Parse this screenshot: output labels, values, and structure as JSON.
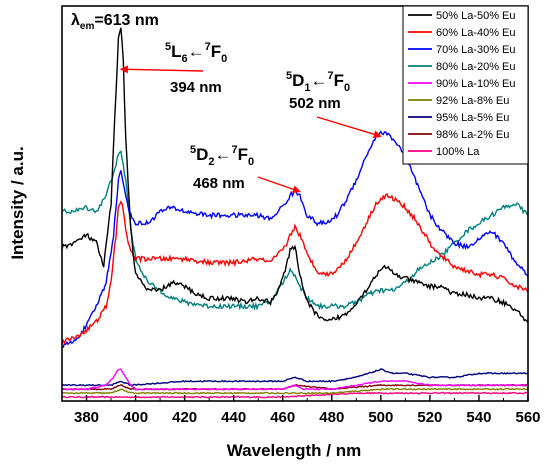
{
  "chart_data": {
    "type": "line",
    "title": "",
    "xlabel": "Wavelength / nm",
    "ylabel": "Intensity / a.u.",
    "xlim": [
      370,
      560
    ],
    "ylim": [
      0,
      1
    ],
    "x_ticks": [
      380,
      400,
      420,
      440,
      460,
      480,
      500,
      520,
      540,
      560
    ],
    "legend_position": "top-right",
    "grid": false,
    "series": [
      {
        "name": "50% La-50% Eu",
        "color": "#000000",
        "points": [
          [
            370,
            0.39
          ],
          [
            375,
            0.4
          ],
          [
            380,
            0.42
          ],
          [
            384,
            0.4
          ],
          [
            387,
            0.34
          ],
          [
            390,
            0.5
          ],
          [
            392,
            0.78
          ],
          [
            393,
            0.92
          ],
          [
            394,
            0.95
          ],
          [
            395,
            0.86
          ],
          [
            396,
            0.66
          ],
          [
            398,
            0.44
          ],
          [
            400,
            0.32
          ],
          [
            405,
            0.28
          ],
          [
            410,
            0.28
          ],
          [
            415,
            0.3
          ],
          [
            420,
            0.29
          ],
          [
            425,
            0.27
          ],
          [
            430,
            0.26
          ],
          [
            440,
            0.26
          ],
          [
            445,
            0.25
          ],
          [
            450,
            0.26
          ],
          [
            455,
            0.25
          ],
          [
            458,
            0.28
          ],
          [
            461,
            0.33
          ],
          [
            463,
            0.38
          ],
          [
            465,
            0.39
          ],
          [
            467,
            0.32
          ],
          [
            470,
            0.25
          ],
          [
            475,
            0.21
          ],
          [
            478,
            0.2
          ],
          [
            482,
            0.21
          ],
          [
            486,
            0.22
          ],
          [
            490,
            0.25
          ],
          [
            494,
            0.28
          ],
          [
            498,
            0.32
          ],
          [
            502,
            0.34
          ],
          [
            506,
            0.32
          ],
          [
            510,
            0.31
          ],
          [
            515,
            0.3
          ],
          [
            520,
            0.29
          ],
          [
            525,
            0.29
          ],
          [
            530,
            0.27
          ],
          [
            535,
            0.27
          ],
          [
            540,
            0.26
          ],
          [
            545,
            0.26
          ],
          [
            550,
            0.25
          ],
          [
            555,
            0.23
          ],
          [
            560,
            0.2
          ]
        ]
      },
      {
        "name": "60% La-40% Eu",
        "color": "#ff0000",
        "points": [
          [
            370,
            0.15
          ],
          [
            375,
            0.16
          ],
          [
            380,
            0.18
          ],
          [
            384,
            0.2
          ],
          [
            388,
            0.24
          ],
          [
            390,
            0.3
          ],
          [
            392,
            0.42
          ],
          [
            393,
            0.49
          ],
          [
            394,
            0.51
          ],
          [
            395,
            0.48
          ],
          [
            396,
            0.43
          ],
          [
            398,
            0.38
          ],
          [
            400,
            0.36
          ],
          [
            405,
            0.36
          ],
          [
            410,
            0.36
          ],
          [
            415,
            0.36
          ],
          [
            420,
            0.36
          ],
          [
            430,
            0.35
          ],
          [
            440,
            0.35
          ],
          [
            450,
            0.36
          ],
          [
            455,
            0.35
          ],
          [
            458,
            0.37
          ],
          [
            461,
            0.39
          ],
          [
            463,
            0.42
          ],
          [
            465,
            0.44
          ],
          [
            467,
            0.42
          ],
          [
            470,
            0.37
          ],
          [
            474,
            0.33
          ],
          [
            478,
            0.32
          ],
          [
            482,
            0.33
          ],
          [
            486,
            0.36
          ],
          [
            490,
            0.4
          ],
          [
            494,
            0.45
          ],
          [
            498,
            0.5
          ],
          [
            502,
            0.52
          ],
          [
            506,
            0.51
          ],
          [
            510,
            0.49
          ],
          [
            514,
            0.46
          ],
          [
            518,
            0.42
          ],
          [
            522,
            0.38
          ],
          [
            526,
            0.36
          ],
          [
            530,
            0.34
          ],
          [
            535,
            0.33
          ],
          [
            540,
            0.32
          ],
          [
            545,
            0.32
          ],
          [
            550,
            0.31
          ],
          [
            555,
            0.29
          ],
          [
            560,
            0.28
          ]
        ]
      },
      {
        "name": "70% La-30% Eu",
        "color": "#0000ff",
        "points": [
          [
            370,
            0.14
          ],
          [
            375,
            0.15
          ],
          [
            380,
            0.19
          ],
          [
            384,
            0.24
          ],
          [
            388,
            0.3
          ],
          [
            391,
            0.42
          ],
          [
            393,
            0.56
          ],
          [
            394,
            0.58
          ],
          [
            396,
            0.52
          ],
          [
            398,
            0.47
          ],
          [
            400,
            0.45
          ],
          [
            405,
            0.45
          ],
          [
            410,
            0.48
          ],
          [
            415,
            0.49
          ],
          [
            420,
            0.48
          ],
          [
            430,
            0.47
          ],
          [
            440,
            0.47
          ],
          [
            450,
            0.47
          ],
          [
            455,
            0.46
          ],
          [
            458,
            0.48
          ],
          [
            461,
            0.5
          ],
          [
            463,
            0.52
          ],
          [
            465,
            0.53
          ],
          [
            467,
            0.52
          ],
          [
            470,
            0.47
          ],
          [
            474,
            0.45
          ],
          [
            478,
            0.45
          ],
          [
            482,
            0.47
          ],
          [
            486,
            0.51
          ],
          [
            490,
            0.56
          ],
          [
            494,
            0.62
          ],
          [
            498,
            0.67
          ],
          [
            501,
            0.68
          ],
          [
            504,
            0.67
          ],
          [
            508,
            0.64
          ],
          [
            512,
            0.59
          ],
          [
            516,
            0.53
          ],
          [
            520,
            0.47
          ],
          [
            525,
            0.43
          ],
          [
            530,
            0.4
          ],
          [
            535,
            0.39
          ],
          [
            540,
            0.41
          ],
          [
            545,
            0.43
          ],
          [
            550,
            0.4
          ],
          [
            555,
            0.35
          ],
          [
            560,
            0.32
          ]
        ]
      },
      {
        "name": "80% La-20% Eu",
        "color": "#007f7f",
        "points": [
          [
            370,
            0.48
          ],
          [
            375,
            0.48
          ],
          [
            380,
            0.49
          ],
          [
            384,
            0.48
          ],
          [
            388,
            0.52
          ],
          [
            391,
            0.58
          ],
          [
            393,
            0.62
          ],
          [
            394,
            0.63
          ],
          [
            396,
            0.56
          ],
          [
            398,
            0.44
          ],
          [
            400,
            0.36
          ],
          [
            405,
            0.3
          ],
          [
            410,
            0.28
          ],
          [
            415,
            0.26
          ],
          [
            420,
            0.25
          ],
          [
            430,
            0.24
          ],
          [
            440,
            0.24
          ],
          [
            450,
            0.24
          ],
          [
            455,
            0.25
          ],
          [
            458,
            0.28
          ],
          [
            461,
            0.31
          ],
          [
            463,
            0.33
          ],
          [
            465,
            0.32
          ],
          [
            467,
            0.29
          ],
          [
            470,
            0.26
          ],
          [
            475,
            0.24
          ],
          [
            480,
            0.24
          ],
          [
            485,
            0.24
          ],
          [
            490,
            0.25
          ],
          [
            495,
            0.27
          ],
          [
            500,
            0.28
          ],
          [
            505,
            0.28
          ],
          [
            510,
            0.3
          ],
          [
            515,
            0.33
          ],
          [
            520,
            0.35
          ],
          [
            525,
            0.37
          ],
          [
            530,
            0.4
          ],
          [
            535,
            0.43
          ],
          [
            540,
            0.45
          ],
          [
            545,
            0.47
          ],
          [
            550,
            0.49
          ],
          [
            555,
            0.5
          ],
          [
            560,
            0.47
          ]
        ]
      },
      {
        "name": "90% La-10% Eu",
        "color": "#ff00ff",
        "points": [
          [
            370,
            0.03
          ],
          [
            380,
            0.03
          ],
          [
            388,
            0.04
          ],
          [
            391,
            0.06
          ],
          [
            393,
            0.08
          ],
          [
            394,
            0.08
          ],
          [
            396,
            0.06
          ],
          [
            398,
            0.04
          ],
          [
            400,
            0.03
          ],
          [
            420,
            0.03
          ],
          [
            440,
            0.03
          ],
          [
            460,
            0.03
          ],
          [
            465,
            0.04
          ],
          [
            468,
            0.03
          ],
          [
            480,
            0.03
          ],
          [
            490,
            0.04
          ],
          [
            500,
            0.05
          ],
          [
            510,
            0.05
          ],
          [
            520,
            0.04
          ],
          [
            530,
            0.04
          ],
          [
            540,
            0.04
          ],
          [
            550,
            0.04
          ],
          [
            560,
            0.04
          ]
        ]
      },
      {
        "name": "92% La-8% Eu",
        "color": "#808000",
        "points": [
          [
            370,
            0.02
          ],
          [
            380,
            0.02
          ],
          [
            390,
            0.02
          ],
          [
            394,
            0.03
          ],
          [
            398,
            0.02
          ],
          [
            420,
            0.02
          ],
          [
            440,
            0.02
          ],
          [
            460,
            0.02
          ],
          [
            465,
            0.02
          ],
          [
            480,
            0.02
          ],
          [
            500,
            0.03
          ],
          [
            520,
            0.03
          ],
          [
            540,
            0.03
          ],
          [
            560,
            0.03
          ]
        ]
      },
      {
        "name": "95% La-5% Eu",
        "color": "#00007f",
        "points": [
          [
            370,
            0.04
          ],
          [
            380,
            0.04
          ],
          [
            390,
            0.04
          ],
          [
            394,
            0.05
          ],
          [
            398,
            0.04
          ],
          [
            420,
            0.05
          ],
          [
            440,
            0.05
          ],
          [
            460,
            0.05
          ],
          [
            465,
            0.06
          ],
          [
            470,
            0.05
          ],
          [
            480,
            0.05
          ],
          [
            490,
            0.06
          ],
          [
            500,
            0.08
          ],
          [
            505,
            0.07
          ],
          [
            510,
            0.07
          ],
          [
            520,
            0.06
          ],
          [
            530,
            0.06
          ],
          [
            540,
            0.07
          ],
          [
            550,
            0.07
          ],
          [
            560,
            0.07
          ]
        ]
      },
      {
        "name": "98% La-2% Eu",
        "color": "#7f0000",
        "points": [
          [
            370,
            0.03
          ],
          [
            380,
            0.03
          ],
          [
            390,
            0.03
          ],
          [
            394,
            0.04
          ],
          [
            398,
            0.03
          ],
          [
            420,
            0.03
          ],
          [
            440,
            0.03
          ],
          [
            460,
            0.03
          ],
          [
            465,
            0.04
          ],
          [
            480,
            0.03
          ],
          [
            500,
            0.04
          ],
          [
            520,
            0.04
          ],
          [
            540,
            0.04
          ],
          [
            560,
            0.04
          ]
        ]
      },
      {
        "name": "100% La",
        "color": "#ff0080",
        "points": [
          [
            370,
            0.01
          ],
          [
            400,
            0.01
          ],
          [
            430,
            0.01
          ],
          [
            460,
            0.01
          ],
          [
            490,
            0.02
          ],
          [
            520,
            0.02
          ],
          [
            560,
            0.02
          ]
        ]
      }
    ],
    "annotations": {
      "lambda_em": {
        "lambda": "λ",
        "sub": "em",
        "rest": "=613 nm"
      },
      "peak_394": {
        "sup1": "5",
        "main1": "L",
        "sub1": "6",
        "arrow": "←",
        "sup2": "7",
        "main2": "F",
        "sub2": "0",
        "value": "394 nm",
        "x": 394,
        "y": 0.84
      },
      "peak_468": {
        "sup1": "5",
        "main1": "D",
        "sub1": "2",
        "arrow": "←",
        "sup2": "7",
        "main2": "F",
        "sub2": "0",
        "value": "468 nm",
        "x": 467,
        "y": 0.53
      },
      "peak_502": {
        "sup1": "5",
        "main1": "D",
        "sub1": "1",
        "arrow": "←",
        "sup2": "7",
        "main2": "F",
        "sub2": "0",
        "value": "502 nm",
        "x": 500,
        "y": 0.67
      }
    }
  }
}
